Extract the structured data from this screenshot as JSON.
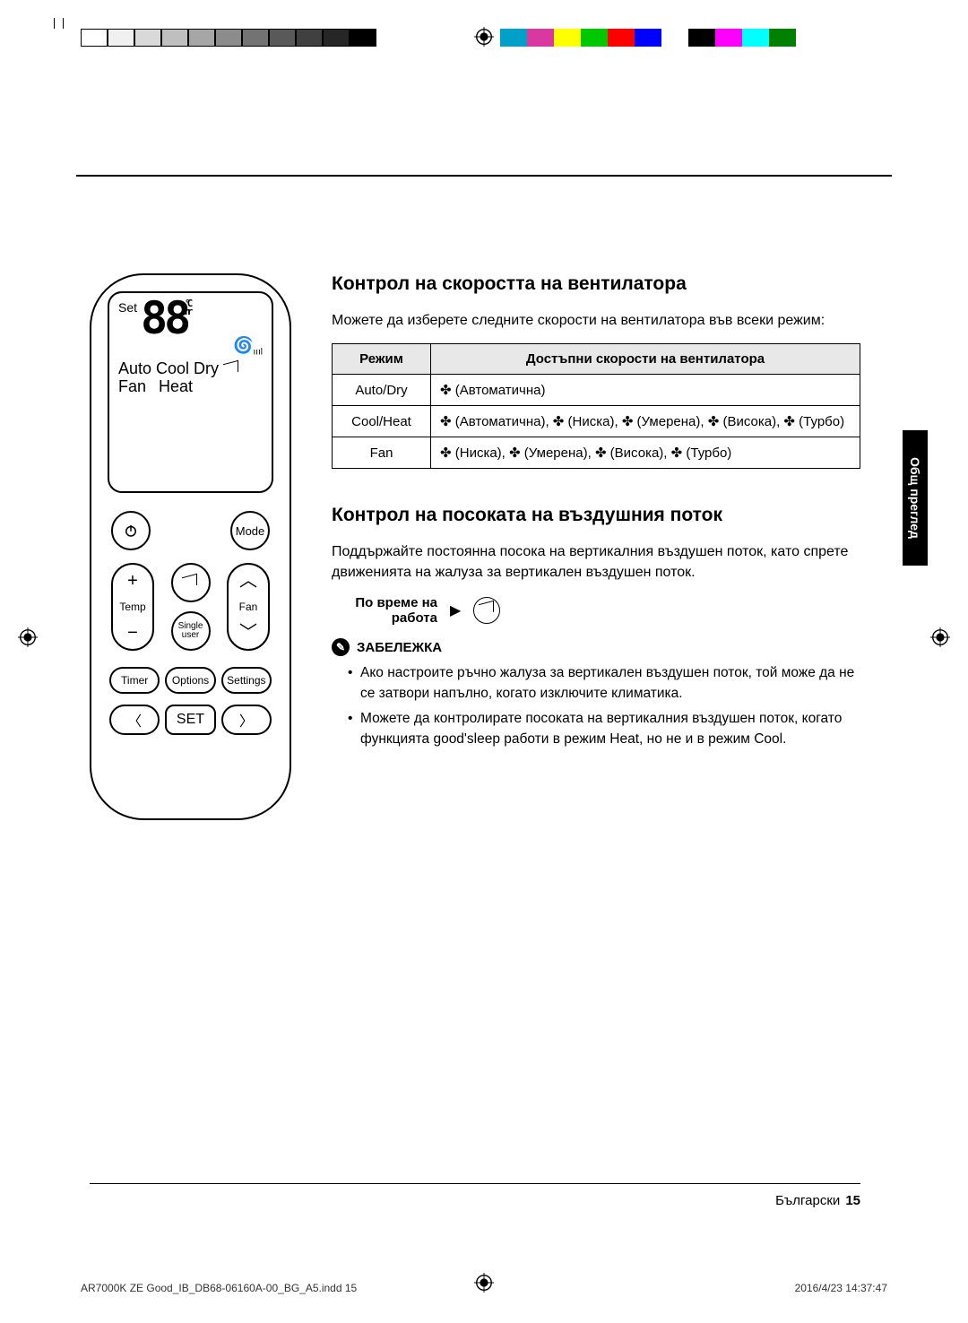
{
  "sideTab": "Общ преглед",
  "remote": {
    "lcd": {
      "set": "Set",
      "digits": "88",
      "unit_c": "°C",
      "unit_hr": "hr",
      "modes_line1": "Auto Cool Dry",
      "modes_fan": "Fan",
      "modes_heat": "Heat"
    },
    "buttons": {
      "mode": "Mode",
      "temp": "Temp",
      "fan": "Fan",
      "single_user": "Single\nuser",
      "timer": "Timer",
      "options": "Options",
      "settings": "Settings",
      "set": "SET"
    }
  },
  "section1": {
    "title": "Контрол на скоростта на вентилатора",
    "intro": "Можете да изберете следните скорости на вентилатора във всеки режим:",
    "table": {
      "head_mode": "Режим",
      "head_speeds": "Достъпни скорости на вентилатора",
      "rows": [
        {
          "mode": "Auto/Dry",
          "speeds": "🌀 (Автоматична)"
        },
        {
          "mode": "Cool/Heat",
          "speeds": "🌀 (Автоматична), 🌀 (Ниска), 🌀 (Умерена), 🌀 (Висока), 🌀 (Турбо)"
        },
        {
          "mode": "Fan",
          "speeds": "🌀 (Ниска), 🌀 (Умерена), 🌀 (Висока), 🌀 (Турбо)"
        }
      ]
    }
  },
  "section2": {
    "title": "Контрол на посоката на въздушния поток",
    "intro": "Поддържайте постоянна посока на вертикалния въздушен поток, като спрете движенията на жалуза за вертикален въздушен поток.",
    "op_label": "По време на работа",
    "note_label": "ЗАБЕЛЕЖКА",
    "notes": [
      "Ако настроите ръчно жалуза за вертикален въздушен поток, той може да не се затвори напълно, когато изключите климатика.",
      "Можете да контролирате посоката на вертикалния въздушен поток, когато функцията good'sleep работи в режим Heat, но не и в режим Cool."
    ]
  },
  "footer": {
    "lang": "Български",
    "page": "15",
    "imprint_left": "AR7000K ZE Good_IB_DB68-06160A-00_BG_A5.indd   15",
    "imprint_right": "2016/4/23   14:37:47"
  },
  "colors": {
    "grays": [
      "#ffffff",
      "#f0f0f0",
      "#d9d9d9",
      "#bfbfbf",
      "#a6a6a6",
      "#8c8c8c",
      "#737373",
      "#595959",
      "#404040",
      "#262626",
      "#000000"
    ],
    "hues": [
      "#00a0c8",
      "#d838a0",
      "#ffff00",
      "#00c800",
      "#ff0000",
      "#0000ff",
      "#ffffff",
      "#000000",
      "#ff00ff",
      "#00ffff",
      "#008000"
    ]
  }
}
